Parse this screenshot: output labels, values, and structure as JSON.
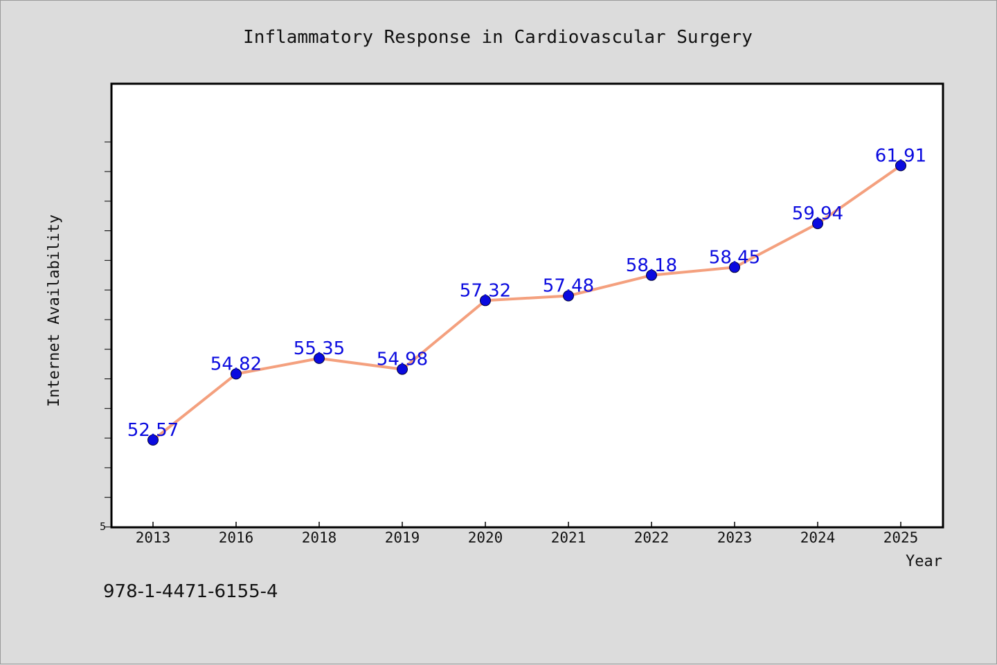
{
  "chart_data": {
    "type": "line",
    "title": "Inflammatory Response in Cardiovascular Surgery",
    "xlabel": "Year",
    "ylabel": "Internet Availability",
    "x": [
      "2013",
      "2016",
      "2018",
      "2019",
      "2020",
      "2021",
      "2022",
      "2023",
      "2024",
      "2025"
    ],
    "series": [
      {
        "values": [
          52.57,
          54.82,
          55.35,
          54.98,
          57.32,
          57.48,
          58.18,
          58.45,
          59.94,
          61.91
        ]
      }
    ],
    "data_labels": [
      "52.57",
      "54.82",
      "55.35",
      "54.98",
      "57.32",
      "57.48",
      "58.18",
      "58.45",
      "59.94",
      "61.91"
    ],
    "ylim": [
      49.6,
      64.7
    ],
    "y_tick_labels": [
      "5"
    ],
    "grid": false,
    "legend": "none",
    "colors": {
      "line": "#f4a07e",
      "marker": "#0a0adf",
      "marker_edge": "#000033",
      "data_label": "#0a0adf",
      "plot_background": "#ffffff",
      "figure_background": "#dcdcdc"
    }
  },
  "footer": {
    "isbn": "978-1-4471-6155-4"
  }
}
